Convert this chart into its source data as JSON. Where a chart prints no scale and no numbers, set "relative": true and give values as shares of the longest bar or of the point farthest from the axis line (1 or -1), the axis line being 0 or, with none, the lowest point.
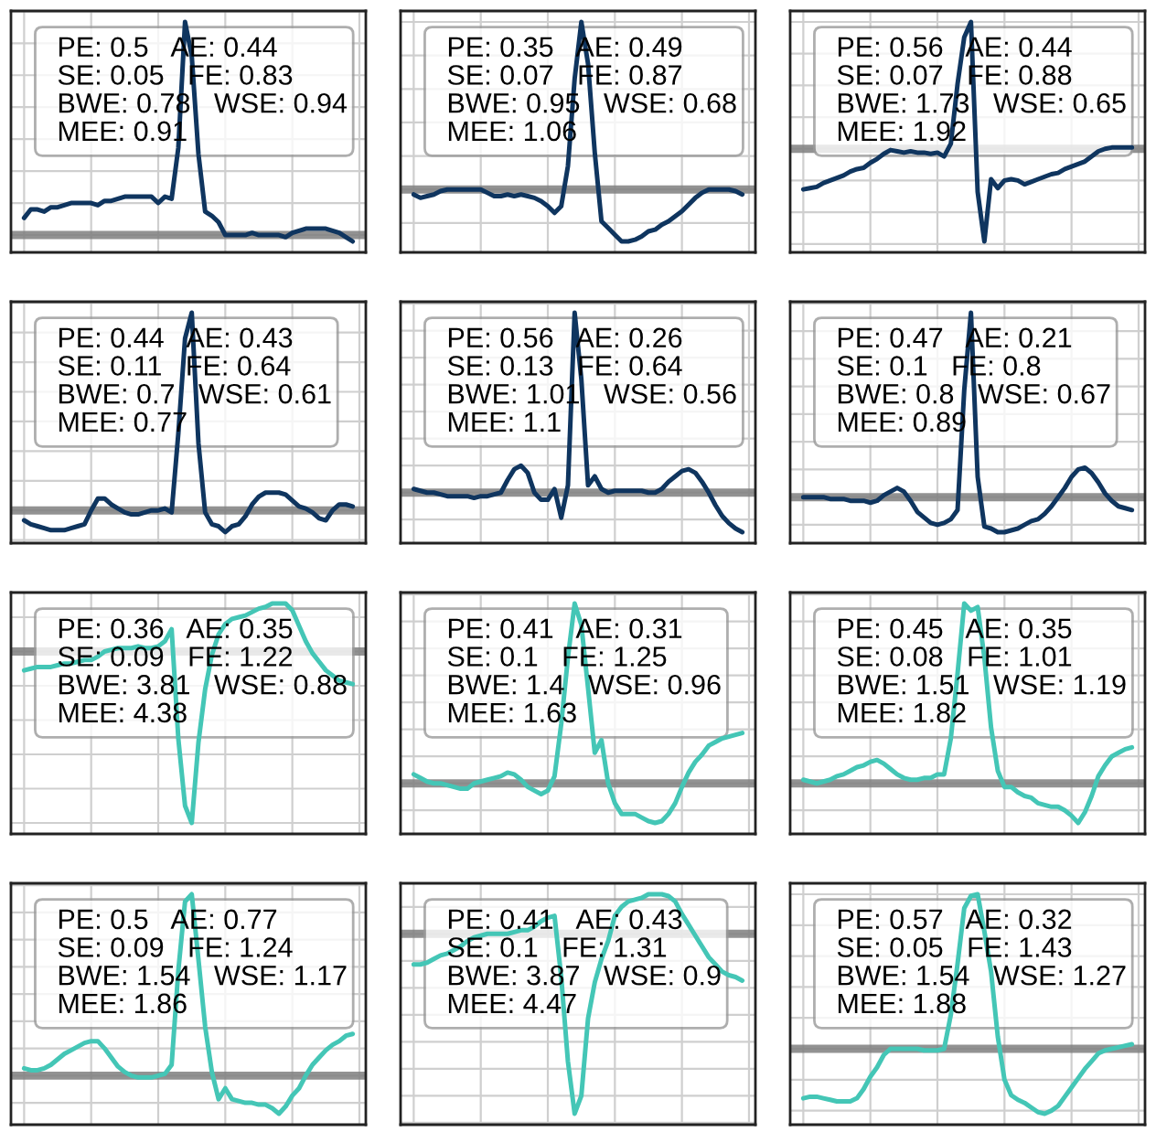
{
  "chart_data": [
    {
      "type": "line",
      "relative": true,
      "grid": true,
      "tick_labels": false,
      "categories": [
        null,
        null,
        null,
        null,
        null,
        null,
        null,
        null,
        null,
        null,
        null,
        null,
        null,
        null,
        null,
        null,
        null,
        null,
        null,
        null,
        null,
        null,
        null,
        null,
        null,
        null,
        null,
        null,
        null,
        null,
        null,
        null,
        null,
        null,
        null,
        null,
        null,
        null,
        null,
        null,
        null,
        null,
        null,
        null,
        null,
        null,
        null,
        null,
        null,
        null
      ],
      "series": [
        {
          "color": "#0f355f",
          "values": [
            0.08,
            0.12,
            0.12,
            0.11,
            0.13,
            0.13,
            0.14,
            0.15,
            0.15,
            0.15,
            0.15,
            0.14,
            0.16,
            0.16,
            0.17,
            0.18,
            0.18,
            0.18,
            0.18,
            0.18,
            0.15,
            0.18,
            0.17,
            0.41,
            1.0,
            0.84,
            0.38,
            0.11,
            0.09,
            0.06,
            0.0,
            0.0,
            0.0,
            0.0,
            0.01,
            0.0,
            0.0,
            0.0,
            0.0,
            -0.01,
            0.01,
            0.02,
            0.03,
            0.03,
            0.03,
            0.03,
            0.02,
            0.01,
            -0.01,
            -0.03
          ]
        }
      ],
      "ref_lines": [
        {
          "axis": "y",
          "value": 0,
          "color": "#7f7f7f"
        }
      ],
      "annotations": [
        "PE: 0.5   AE: 0.44\nSE: 0.05   FE: 0.83\nBWE: 0.78   WSE: 0.94\nMEE: 0.91"
      ]
    },
    {
      "type": "line",
      "relative": true,
      "grid": true,
      "tick_labels": false,
      "categories": [
        null,
        null,
        null,
        null,
        null,
        null,
        null,
        null,
        null,
        null,
        null,
        null,
        null,
        null,
        null,
        null,
        null,
        null,
        null,
        null,
        null,
        null,
        null,
        null,
        null,
        null,
        null,
        null,
        null,
        null,
        null,
        null,
        null,
        null,
        null,
        null,
        null,
        null,
        null,
        null,
        null,
        null,
        null,
        null,
        null,
        null,
        null,
        null,
        null,
        null
      ],
      "series": [
        {
          "color": "#0f355f",
          "values": [
            -0.03,
            -0.05,
            -0.04,
            -0.03,
            -0.01,
            0.0,
            0.0,
            0.0,
            0.0,
            0.0,
            0.0,
            -0.02,
            -0.04,
            -0.04,
            -0.03,
            -0.04,
            -0.03,
            -0.04,
            -0.05,
            -0.07,
            -0.1,
            -0.14,
            -0.1,
            0.14,
            0.66,
            1.0,
            0.75,
            0.22,
            -0.19,
            -0.23,
            -0.27,
            -0.31,
            -0.31,
            -0.3,
            -0.28,
            -0.25,
            -0.24,
            -0.21,
            -0.19,
            -0.16,
            -0.13,
            -0.09,
            -0.05,
            -0.02,
            0.0,
            0.0,
            0.0,
            0.0,
            -0.01,
            -0.03
          ]
        }
      ],
      "ref_lines": [
        {
          "axis": "y",
          "value": 0,
          "color": "#7f7f7f"
        }
      ],
      "annotations": [
        "PE: 0.35   AE: 0.49\nSE: 0.07   FE: 0.87\nBWE: 0.95   WSE: 0.68\nMEE: 1.06"
      ]
    },
    {
      "type": "line",
      "relative": true,
      "grid": true,
      "tick_labels": false,
      "categories": [
        null,
        null,
        null,
        null,
        null,
        null,
        null,
        null,
        null,
        null,
        null,
        null,
        null,
        null,
        null,
        null,
        null,
        null,
        null,
        null,
        null,
        null,
        null,
        null,
        null,
        null,
        null,
        null,
        null,
        null,
        null,
        null,
        null,
        null,
        null,
        null,
        null,
        null,
        null,
        null,
        null,
        null,
        null,
        null,
        null,
        null,
        null,
        null,
        null,
        null
      ],
      "series": [
        {
          "color": "#0f355f",
          "values": [
            -0.32,
            -0.31,
            -0.3,
            -0.27,
            -0.25,
            -0.23,
            -0.21,
            -0.18,
            -0.16,
            -0.15,
            -0.11,
            -0.08,
            -0.04,
            -0.01,
            -0.02,
            -0.03,
            -0.02,
            -0.03,
            -0.03,
            -0.04,
            -0.03,
            -0.06,
            0.04,
            0.51,
            0.88,
            1.0,
            -0.34,
            -0.73,
            -0.24,
            -0.31,
            -0.25,
            -0.24,
            -0.25,
            -0.28,
            -0.26,
            -0.24,
            -0.22,
            -0.2,
            -0.19,
            -0.16,
            -0.14,
            -0.12,
            -0.1,
            -0.06,
            -0.02,
            0.0,
            0.01,
            0.01,
            0.01,
            0.01
          ]
        }
      ],
      "ref_lines": [
        {
          "axis": "y",
          "value": 0,
          "color": "#7f7f7f"
        }
      ],
      "annotations": [
        "PE: 0.56   AE: 0.44\nSE: 0.07   FE: 0.88\nBWE: 1.73   WSE: 0.65\nMEE: 1.92"
      ]
    },
    {
      "type": "line",
      "relative": true,
      "grid": true,
      "tick_labels": false,
      "categories": [
        null,
        null,
        null,
        null,
        null,
        null,
        null,
        null,
        null,
        null,
        null,
        null,
        null,
        null,
        null,
        null,
        null,
        null,
        null,
        null,
        null,
        null,
        null,
        null,
        null,
        null,
        null,
        null,
        null,
        null,
        null,
        null,
        null,
        null,
        null,
        null,
        null,
        null,
        null,
        null,
        null,
        null,
        null,
        null,
        null,
        null,
        null,
        null,
        null,
        null
      ],
      "series": [
        {
          "color": "#0f355f",
          "values": [
            -0.05,
            -0.07,
            -0.08,
            -0.09,
            -0.1,
            -0.1,
            -0.1,
            -0.09,
            -0.08,
            -0.07,
            0.0,
            0.06,
            0.06,
            0.03,
            0.01,
            -0.01,
            -0.02,
            -0.02,
            -0.01,
            0.0,
            0.0,
            0.01,
            -0.01,
            0.39,
            0.87,
            1.0,
            0.34,
            -0.01,
            -0.07,
            -0.08,
            -0.11,
            -0.08,
            -0.07,
            -0.03,
            0.03,
            0.07,
            0.09,
            0.09,
            0.09,
            0.08,
            0.05,
            0.02,
            0.01,
            -0.01,
            -0.04,
            -0.05,
            0.0,
            0.03,
            0.03,
            0.02
          ]
        }
      ],
      "ref_lines": [
        {
          "axis": "y",
          "value": 0,
          "color": "#7f7f7f"
        }
      ],
      "annotations": [
        "PE: 0.44   AE: 0.43\nSE: 0.11   FE: 0.64\nBWE: 0.7   WSE: 0.61\nMEE: 0.77"
      ]
    },
    {
      "type": "line",
      "relative": true,
      "grid": true,
      "tick_labels": false,
      "categories": [
        null,
        null,
        null,
        null,
        null,
        null,
        null,
        null,
        null,
        null,
        null,
        null,
        null,
        null,
        null,
        null,
        null,
        null,
        null,
        null,
        null,
        null,
        null,
        null,
        null,
        null,
        null,
        null,
        null,
        null,
        null,
        null,
        null,
        null,
        null,
        null,
        null,
        null,
        null,
        null,
        null,
        null,
        null,
        null,
        null,
        null,
        null,
        null,
        null,
        null
      ],
      "series": [
        {
          "color": "#0f355f",
          "values": [
            0.02,
            0.01,
            0.0,
            0.0,
            -0.01,
            -0.02,
            -0.02,
            -0.02,
            -0.02,
            -0.03,
            -0.02,
            -0.02,
            -0.01,
            0.0,
            0.07,
            0.13,
            0.15,
            0.11,
            0.0,
            -0.04,
            -0.04,
            0.02,
            -0.14,
            0.04,
            1.0,
            0.63,
            0.04,
            0.09,
            0.02,
            0.0,
            0.01,
            0.01,
            0.01,
            0.01,
            0.01,
            0.0,
            0.0,
            0.02,
            0.06,
            0.09,
            0.12,
            0.13,
            0.11,
            0.06,
            0.0,
            -0.07,
            -0.13,
            -0.17,
            -0.2,
            -0.22
          ]
        }
      ],
      "ref_lines": [
        {
          "axis": "y",
          "value": 0,
          "color": "#7f7f7f"
        }
      ],
      "annotations": [
        "PE: 0.56   AE: 0.26\nSE: 0.13   FE: 0.64\nBWE: 1.01   WSE: 0.56\nMEE: 1.1"
      ]
    },
    {
      "type": "line",
      "relative": true,
      "grid": true,
      "tick_labels": false,
      "categories": [
        null,
        null,
        null,
        null,
        null,
        null,
        null,
        null,
        null,
        null,
        null,
        null,
        null,
        null,
        null,
        null,
        null,
        null,
        null,
        null,
        null,
        null,
        null,
        null,
        null,
        null,
        null,
        null,
        null,
        null,
        null,
        null,
        null,
        null,
        null,
        null,
        null,
        null,
        null,
        null,
        null,
        null,
        null,
        null,
        null,
        null,
        null,
        null,
        null,
        null
      ],
      "series": [
        {
          "color": "#0f355f",
          "values": [
            0.0,
            0.0,
            0.0,
            0.0,
            -0.01,
            -0.01,
            -0.01,
            -0.02,
            -0.02,
            -0.02,
            -0.03,
            -0.02,
            0.01,
            0.03,
            0.05,
            0.03,
            -0.02,
            -0.08,
            -0.11,
            -0.14,
            -0.15,
            -0.14,
            -0.12,
            -0.07,
            0.58,
            1.0,
            0.11,
            -0.16,
            -0.17,
            -0.19,
            -0.19,
            -0.18,
            -0.17,
            -0.15,
            -0.13,
            -0.12,
            -0.09,
            -0.05,
            0.0,
            0.05,
            0.11,
            0.15,
            0.16,
            0.13,
            0.08,
            0.02,
            -0.02,
            -0.05,
            -0.06,
            -0.07
          ]
        }
      ],
      "ref_lines": [
        {
          "axis": "y",
          "value": 0,
          "color": "#7f7f7f"
        }
      ],
      "annotations": [
        "PE: 0.47   AE: 0.21\nSE: 0.1   FE: 0.8\nBWE: 0.8   WSE: 0.67\nMEE: 0.89"
      ]
    },
    {
      "type": "line",
      "relative": true,
      "grid": true,
      "tick_labels": false,
      "categories": [
        null,
        null,
        null,
        null,
        null,
        null,
        null,
        null,
        null,
        null,
        null,
        null,
        null,
        null,
        null,
        null,
        null,
        null,
        null,
        null,
        null,
        null,
        null,
        null,
        null,
        null,
        null,
        null,
        null,
        null,
        null,
        null,
        null,
        null,
        null,
        null,
        null,
        null,
        null,
        null,
        null,
        null,
        null,
        null,
        null,
        null,
        null,
        null,
        null,
        null
      ],
      "series": [
        {
          "color": "#44c6b6",
          "values": [
            -0.11,
            -0.1,
            -0.09,
            -0.09,
            -0.09,
            -0.08,
            -0.07,
            -0.07,
            -0.06,
            -0.05,
            -0.05,
            -0.03,
            0.0,
            0.01,
            0.02,
            0.02,
            0.02,
            0.03,
            0.02,
            0.02,
            0.03,
            0.06,
            0.13,
            -0.51,
            -0.9,
            -1.0,
            -0.53,
            -0.22,
            -0.02,
            0.1,
            0.16,
            0.19,
            0.2,
            0.21,
            0.23,
            0.25,
            0.26,
            0.28,
            0.28,
            0.28,
            0.24,
            0.15,
            0.06,
            -0.01,
            -0.06,
            -0.11,
            -0.14,
            -0.17,
            -0.18,
            -0.19
          ]
        }
      ],
      "ref_lines": [
        {
          "axis": "y",
          "value": 0,
          "color": "#7f7f7f"
        }
      ],
      "annotations": [
        "PE: 0.36   AE: 0.35\nSE: 0.09   FE: 1.22\nBWE: 3.81   WSE: 0.88\nMEE: 4.38"
      ]
    },
    {
      "type": "line",
      "relative": true,
      "grid": true,
      "tick_labels": false,
      "categories": [
        null,
        null,
        null,
        null,
        null,
        null,
        null,
        null,
        null,
        null,
        null,
        null,
        null,
        null,
        null,
        null,
        null,
        null,
        null,
        null,
        null,
        null,
        null,
        null,
        null,
        null,
        null,
        null,
        null,
        null,
        null,
        null,
        null,
        null,
        null,
        null,
        null,
        null,
        null,
        null,
        null,
        null,
        null,
        null,
        null,
        null,
        null,
        null,
        null,
        null
      ],
      "series": [
        {
          "color": "#44c6b6",
          "values": [
            0.05,
            0.03,
            0.01,
            0.0,
            0.0,
            -0.01,
            -0.02,
            -0.03,
            -0.03,
            0.0,
            0.01,
            0.02,
            0.03,
            0.04,
            0.06,
            0.05,
            0.02,
            -0.02,
            -0.04,
            -0.06,
            -0.04,
            0.04,
            0.33,
            0.7,
            1.0,
            0.88,
            0.53,
            0.17,
            0.24,
            0.0,
            -0.11,
            -0.17,
            -0.17,
            -0.17,
            -0.19,
            -0.21,
            -0.22,
            -0.21,
            -0.17,
            -0.11,
            -0.02,
            0.06,
            0.12,
            0.16,
            0.21,
            0.23,
            0.25,
            0.26,
            0.27,
            0.28
          ]
        }
      ],
      "ref_lines": [
        {
          "axis": "y",
          "value": 0,
          "color": "#7f7f7f"
        }
      ],
      "annotations": [
        "PE: 0.41   AE: 0.31\nSE: 0.1   FE: 1.25\nBWE: 1.4   WSE: 0.96\nMEE: 1.63"
      ]
    },
    {
      "type": "line",
      "relative": true,
      "grid": true,
      "tick_labels": false,
      "categories": [
        null,
        null,
        null,
        null,
        null,
        null,
        null,
        null,
        null,
        null,
        null,
        null,
        null,
        null,
        null,
        null,
        null,
        null,
        null,
        null,
        null,
        null,
        null,
        null,
        null,
        null,
        null,
        null,
        null,
        null,
        null,
        null,
        null,
        null,
        null,
        null,
        null,
        null,
        null,
        null,
        null,
        null,
        null,
        null,
        null,
        null,
        null,
        null,
        null,
        null
      ],
      "series": [
        {
          "color": "#44c6b6",
          "values": [
            0.02,
            0.01,
            0.0,
            0.01,
            0.02,
            0.04,
            0.05,
            0.07,
            0.09,
            0.1,
            0.12,
            0.13,
            0.11,
            0.08,
            0.05,
            0.03,
            0.02,
            0.02,
            0.03,
            0.03,
            0.05,
            0.05,
            0.25,
            0.61,
            1.0,
            0.96,
            0.98,
            0.7,
            0.31,
            0.07,
            -0.02,
            -0.02,
            -0.05,
            -0.07,
            -0.08,
            -0.11,
            -0.12,
            -0.13,
            -0.13,
            -0.15,
            -0.18,
            -0.22,
            -0.16,
            -0.07,
            0.04,
            0.1,
            0.15,
            0.17,
            0.19,
            0.2
          ]
        }
      ],
      "ref_lines": [
        {
          "axis": "y",
          "value": 0,
          "color": "#7f7f7f"
        }
      ],
      "annotations": [
        "PE: 0.45   AE: 0.35\nSE: 0.08   FE: 1.01\nBWE: 1.51   WSE: 1.19\nMEE: 1.82"
      ]
    },
    {
      "type": "line",
      "relative": true,
      "grid": true,
      "tick_labels": false,
      "categories": [
        null,
        null,
        null,
        null,
        null,
        null,
        null,
        null,
        null,
        null,
        null,
        null,
        null,
        null,
        null,
        null,
        null,
        null,
        null,
        null,
        null,
        null,
        null,
        null,
        null,
        null,
        null,
        null,
        null,
        null,
        null,
        null,
        null,
        null,
        null,
        null,
        null,
        null,
        null,
        null,
        null,
        null,
        null,
        null,
        null,
        null,
        null,
        null,
        null,
        null
      ],
      "series": [
        {
          "color": "#44c6b6",
          "values": [
            0.04,
            0.03,
            0.03,
            0.04,
            0.06,
            0.09,
            0.12,
            0.14,
            0.16,
            0.18,
            0.19,
            0.19,
            0.15,
            0.1,
            0.05,
            0.02,
            0.0,
            -0.01,
            -0.01,
            -0.01,
            0.0,
            0.01,
            0.06,
            0.58,
            0.96,
            1.0,
            0.64,
            0.27,
            0.02,
            -0.13,
            -0.07,
            -0.13,
            -0.14,
            -0.15,
            -0.15,
            -0.16,
            -0.16,
            -0.18,
            -0.21,
            -0.17,
            -0.11,
            -0.07,
            0.0,
            0.06,
            0.1,
            0.14,
            0.17,
            0.19,
            0.22,
            0.23
          ]
        }
      ],
      "ref_lines": [
        {
          "axis": "y",
          "value": 0,
          "color": "#7f7f7f"
        }
      ],
      "annotations": [
        "PE: 0.5   AE: 0.77\nSE: 0.09   FE: 1.24\nBWE: 1.54   WSE: 1.17\nMEE: 1.86"
      ]
    },
    {
      "type": "line",
      "relative": true,
      "grid": true,
      "tick_labels": false,
      "categories": [
        null,
        null,
        null,
        null,
        null,
        null,
        null,
        null,
        null,
        null,
        null,
        null,
        null,
        null,
        null,
        null,
        null,
        null,
        null,
        null,
        null,
        null,
        null,
        null,
        null,
        null,
        null,
        null,
        null,
        null,
        null,
        null,
        null,
        null,
        null,
        null,
        null,
        null,
        null,
        null,
        null,
        null,
        null,
        null,
        null,
        null,
        null,
        null,
        null,
        null
      ],
      "series": [
        {
          "color": "#44c6b6",
          "values": [
            -0.17,
            -0.17,
            -0.16,
            -0.14,
            -0.12,
            -0.11,
            -0.09,
            -0.07,
            -0.04,
            -0.02,
            -0.01,
            0.0,
            0.0,
            0.0,
            0.0,
            0.01,
            0.02,
            0.02,
            0.04,
            0.07,
            0.09,
            0.1,
            -0.24,
            -0.71,
            -1.0,
            -0.9,
            -0.47,
            -0.27,
            -0.14,
            -0.04,
            0.1,
            0.15,
            0.18,
            0.19,
            0.2,
            0.22,
            0.22,
            0.22,
            0.21,
            0.18,
            0.11,
            0.05,
            -0.01,
            -0.07,
            -0.13,
            -0.17,
            -0.21,
            -0.23,
            -0.24,
            -0.26
          ]
        }
      ],
      "ref_lines": [
        {
          "axis": "y",
          "value": 0,
          "color": "#7f7f7f"
        }
      ],
      "annotations": [
        "PE: 0.41   AE: 0.43\nSE: 0.1   FE: 1.31\nBWE: 3.87   WSE: 0.9\nMEE: 4.47"
      ]
    },
    {
      "type": "line",
      "relative": true,
      "grid": true,
      "tick_labels": false,
      "categories": [
        null,
        null,
        null,
        null,
        null,
        null,
        null,
        null,
        null,
        null,
        null,
        null,
        null,
        null,
        null,
        null,
        null,
        null,
        null,
        null,
        null,
        null,
        null,
        null,
        null,
        null,
        null,
        null,
        null,
        null,
        null,
        null,
        null,
        null,
        null,
        null,
        null,
        null,
        null,
        null,
        null,
        null,
        null,
        null,
        null,
        null,
        null,
        null,
        null,
        null
      ],
      "series": [
        {
          "color": "#44c6b6",
          "values": [
            -0.32,
            -0.31,
            -0.31,
            -0.32,
            -0.33,
            -0.34,
            -0.34,
            -0.34,
            -0.32,
            -0.26,
            -0.18,
            -0.12,
            -0.04,
            0.0,
            0.0,
            0.0,
            0.0,
            0.0,
            -0.01,
            -0.01,
            -0.01,
            0.0,
            0.22,
            0.55,
            0.91,
            0.99,
            1.0,
            0.76,
            0.5,
            0.08,
            -0.2,
            -0.3,
            -0.33,
            -0.35,
            -0.38,
            -0.41,
            -0.42,
            -0.4,
            -0.37,
            -0.31,
            -0.25,
            -0.19,
            -0.13,
            -0.08,
            -0.03,
            -0.01,
            0.0,
            0.01,
            0.02,
            0.03
          ]
        }
      ],
      "ref_lines": [
        {
          "axis": "y",
          "value": 0,
          "color": "#7f7f7f"
        }
      ],
      "annotations": [
        "PE: 0.57   AE: 0.32\nSE: 0.05   FE: 1.43\nBWE: 1.54   WSE: 1.27\nMEE: 1.88"
      ]
    }
  ]
}
